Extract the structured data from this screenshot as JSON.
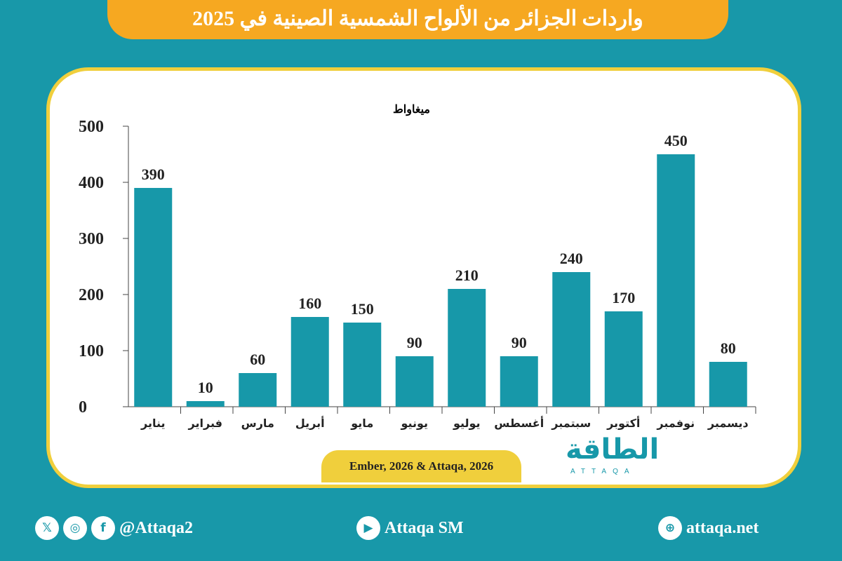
{
  "title": "واردات الجزائر من الألواح الشمسية الصينية في 2025",
  "source": "Ember, 2026 & Attaqa, 2026",
  "logo": {
    "arabic": "الطاقة",
    "latin": "ATTAQA"
  },
  "footer": {
    "social_handle": "@Attaqa2",
    "youtube": "Attaqa SM",
    "website": "attaqa.net",
    "icons": [
      "x-icon",
      "instagram-icon",
      "facebook-icon",
      "youtube-icon",
      "globe-icon"
    ]
  },
  "colors": {
    "background": "#1898a9",
    "bar": "#1798a9",
    "title_bg": "#f6a821",
    "border": "#f0cf3c"
  },
  "chart_data": {
    "type": "bar",
    "title": "",
    "ylabel": "ميغاواط",
    "categories": [
      "يناير",
      "فبراير",
      "مارس",
      "أبريل",
      "مايو",
      "يونيو",
      "يوليو",
      "أغسطس",
      "سبتمبر",
      "أكتوبر",
      "نوفمبر",
      "ديسمبر"
    ],
    "values": [
      390,
      10,
      60,
      160,
      150,
      90,
      210,
      90,
      240,
      170,
      450,
      80
    ],
    "ylim": [
      0,
      500
    ],
    "yticks": [
      0,
      100,
      200,
      300,
      400,
      500
    ],
    "grid": false,
    "data_labels": true
  }
}
